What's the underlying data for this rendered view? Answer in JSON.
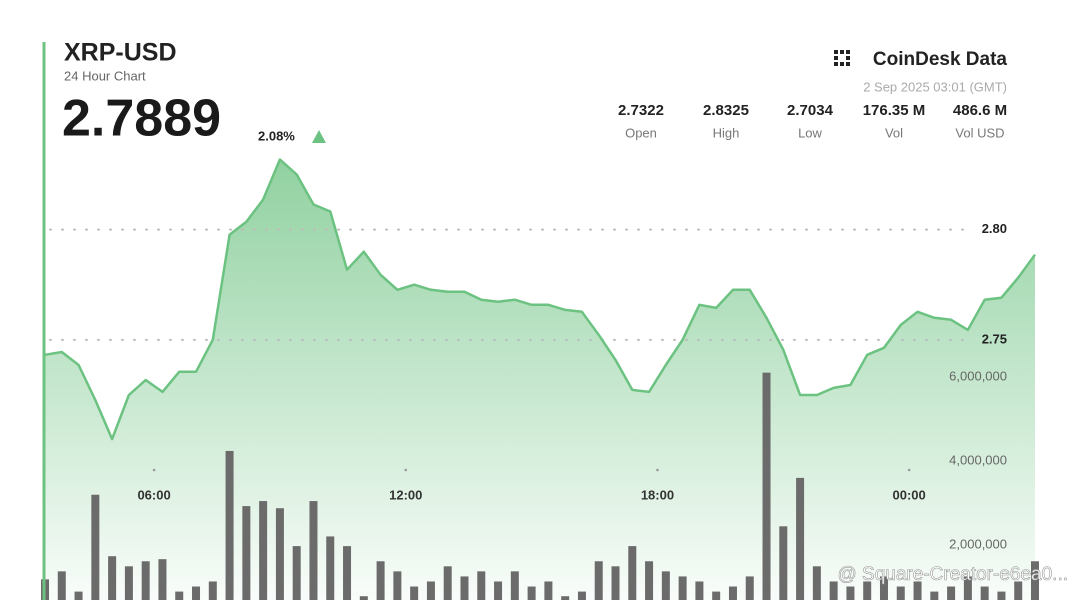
{
  "chart_data": {
    "type": "line",
    "title": "XRP-USD",
    "subtitle": "24 Hour Chart",
    "price": 2.7889,
    "change": {
      "value": 2.08,
      "label": "2.08%"
    },
    "brand": "CoinDesk Data",
    "timestamp": "2 Sep 2025 03:01 (GMT)",
    "stats": [
      {
        "name": "Open",
        "value": 2.7322
      },
      {
        "name": "High",
        "value": 2.8325
      },
      {
        "name": "Low",
        "value": 2.7034
      },
      {
        "name": "Vol",
        "value": 176350000,
        "value_label": "176.35 M"
      },
      {
        "name": "Vol USD",
        "value": 486600000,
        "value_label": "486.6 M"
      }
    ],
    "watermark": "@ Square-Creator-e6ea0...",
    "x": [
      3.4,
      3.8,
      4.2,
      4.6,
      5,
      5.4,
      5.8,
      6.2,
      6.6,
      7,
      7.4,
      7.8,
      8.2,
      8.6,
      9,
      9.4,
      9.8,
      10.2,
      10.6,
      11,
      11.4,
      11.8,
      12.2,
      12.6,
      13,
      13.4,
      13.8,
      14.2,
      14.6,
      15,
      15.4,
      15.8,
      16.2,
      16.6,
      17,
      17.4,
      17.8,
      18.2,
      18.6,
      19,
      19.4,
      19.8,
      20.2,
      20.6,
      21,
      21.4,
      21.8,
      22.2,
      22.6,
      23,
      23.4,
      23.8,
      24.2,
      24.6,
      25,
      25.4,
      25.8,
      26.2,
      26.6,
      27
    ],
    "xlim": [
      3.4,
      27
    ],
    "xticks": [
      {
        "value": 6,
        "label": "06:00"
      },
      {
        "value": 12,
        "label": "12:00"
      },
      {
        "value": 18,
        "label": "18:00"
      },
      {
        "value": 24,
        "label": "00:00"
      }
    ],
    "ylim": [
      2.632,
      2.886
    ],
    "yticks": [
      {
        "value": 2.75,
        "label": "2.75"
      },
      {
        "value": 2.8,
        "label": "2.80"
      }
    ],
    "y2lim": [
      700000,
      14000000
    ],
    "y2ticks": [
      {
        "value": 2000000,
        "label": "2,000,000"
      },
      {
        "value": 4000000,
        "label": "4,000,000"
      },
      {
        "value": 6000000,
        "label": "6,000,000"
      }
    ],
    "grid": true,
    "series": [
      {
        "type": "line",
        "color": "#6cc281",
        "values": [
          2.7432,
          2.7445,
          2.7386,
          2.7227,
          2.705,
          2.725,
          2.7318,
          2.7264,
          2.7355,
          2.7355,
          2.75,
          2.7977,
          2.8036,
          2.8136,
          2.8318,
          2.825,
          2.8114,
          2.8082,
          2.7818,
          2.79,
          2.7795,
          2.7727,
          2.775,
          2.7727,
          2.7718,
          2.7718,
          2.7682,
          2.7673,
          2.7682,
          2.7659,
          2.7659,
          2.7636,
          2.7627,
          2.7523,
          2.7409,
          2.7273,
          2.7264,
          2.7386,
          2.75,
          2.7659,
          2.7645,
          2.7727,
          2.7727,
          2.76,
          2.7455,
          2.725,
          2.725,
          2.7282,
          2.7295,
          2.7432,
          2.7464,
          2.7568,
          2.7627,
          2.76,
          2.7591,
          2.7545,
          2.7682,
          2.7691,
          2.7782,
          2.7886
        ]
      },
      {
        "type": "bar",
        "axis": "y2",
        "color": "#6b6b6b",
        "values": [
          1190000,
          1380000,
          900000,
          3200000,
          1740000,
          1500000,
          1620000,
          1670000,
          900000,
          1020000,
          1140000,
          4240000,
          2930000,
          3050000,
          2880000,
          1980000,
          3050000,
          2210000,
          1980000,
          790000,
          1620000,
          1380000,
          1020000,
          1140000,
          1500000,
          1260000,
          1380000,
          1140000,
          1380000,
          1020000,
          1140000,
          790000,
          900000,
          1620000,
          1500000,
          1980000,
          1620000,
          1380000,
          1260000,
          1140000,
          900000,
          1020000,
          1260000,
          6100000,
          2450000,
          3600000,
          1500000,
          1140000,
          1020000,
          1140000,
          1260000,
          1020000,
          1140000,
          900000,
          1020000,
          1260000,
          1020000,
          900000,
          1140000,
          1620000
        ]
      }
    ]
  }
}
